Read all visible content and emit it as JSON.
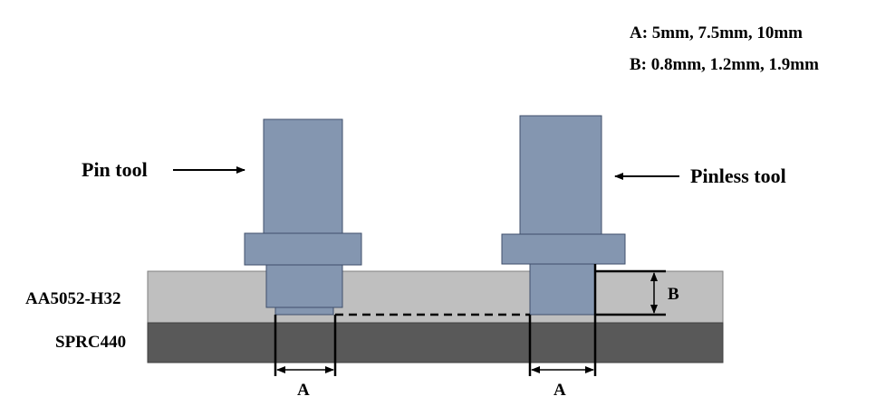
{
  "legend": {
    "a_line": "A: 5mm, 7.5mm, 10mm",
    "b_line": "B: 0.8mm, 1.2mm, 1.9mm"
  },
  "labels": {
    "pin_tool": "Pin tool",
    "pinless_tool": "Pinless tool",
    "top_plate": "AA5052-H32",
    "bottom_plate": "SPRC440",
    "dim_a_left": "A",
    "dim_a_right": "A",
    "dim_b": "B"
  },
  "colors": {
    "tool_fill": "#8496b0",
    "tool_stroke": "#3f4f6b",
    "top_plate": "#bfbfbf",
    "bottom_plate": "#595959",
    "line": "#000000"
  }
}
